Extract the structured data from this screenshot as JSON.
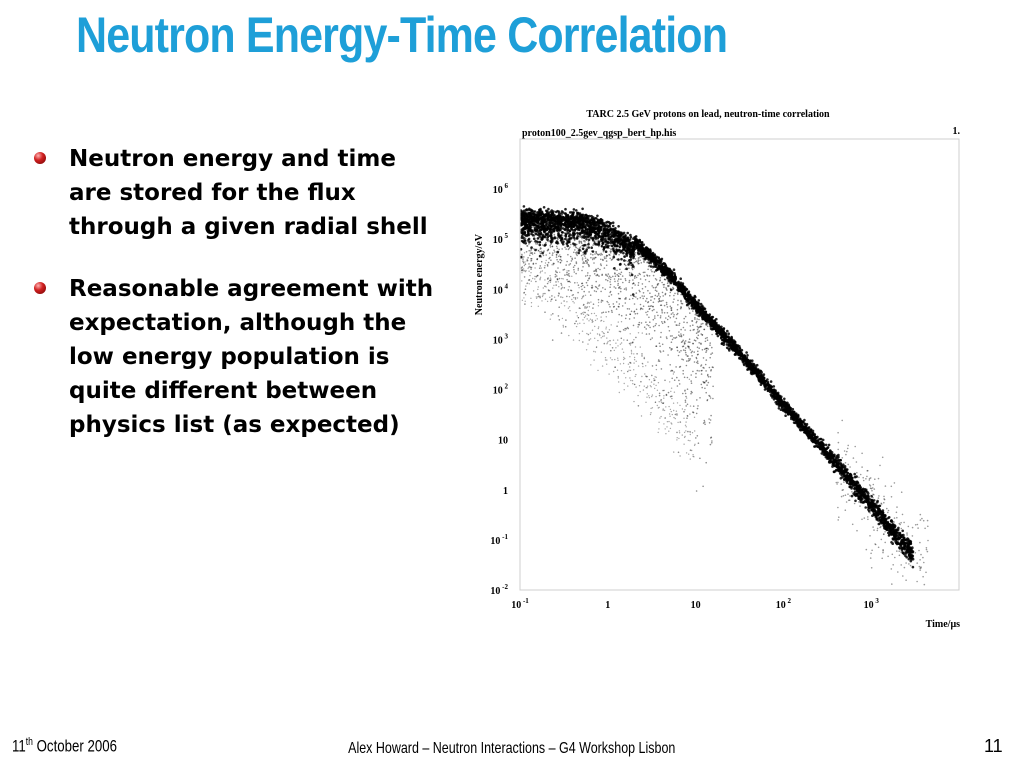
{
  "slide": {
    "title": "Neutron Energy-Time Correlation",
    "title_color": "#1e9fd8",
    "bullet_color": "#c62020",
    "bullets": [
      "Neutron energy and time are stored for the flux through a given radial shell",
      "Reasonable agreement with expectation, although the low energy population is quite different between physics list (as expected)"
    ]
  },
  "footer": {
    "date_day": "11",
    "date_suffix": "th",
    "date_rest": " October 2006",
    "center": "Alex Howard – Neutron Interactions – G4 Workshop Lisbon",
    "page": "11"
  },
  "chart_data": {
    "type": "scatter",
    "title": "TARC 2.5 GeV protons on lead, neutron-time correlation",
    "subtitle": "proton100_2.5gev_qgsp_bert_hp.his",
    "corner_label": "1.",
    "xlabel": "Time/μs",
    "ylabel": "Neutron energy/eV",
    "xscale": "log",
    "yscale": "log",
    "xlim": [
      0.1,
      10000
    ],
    "ylim": [
      0.01,
      10000000
    ],
    "x_ticks": [
      {
        "value": 0.1,
        "base": "10",
        "exp": "-1"
      },
      {
        "value": 1,
        "base": "1",
        "exp": ""
      },
      {
        "value": 10,
        "base": "10",
        "exp": ""
      },
      {
        "value": 100,
        "base": "10",
        "exp": "2"
      },
      {
        "value": 1000,
        "base": "10",
        "exp": "3"
      }
    ],
    "y_ticks": [
      {
        "value": 0.01,
        "base": "10",
        "exp": "-2"
      },
      {
        "value": 0.1,
        "base": "10",
        "exp": "-1"
      },
      {
        "value": 1,
        "base": "1",
        "exp": ""
      },
      {
        "value": 10,
        "base": "10",
        "exp": ""
      },
      {
        "value": 100,
        "base": "10",
        "exp": "2"
      },
      {
        "value": 1000,
        "base": "10",
        "exp": "3"
      },
      {
        "value": 10000,
        "base": "10",
        "exp": "4"
      },
      {
        "value": 100000,
        "base": "10",
        "exp": "5"
      },
      {
        "value": 1000000,
        "base": "10",
        "exp": "6"
      }
    ],
    "grid": false,
    "legend": "none",
    "point_color": "#000000",
    "bands": [
      {
        "name": "main-band",
        "x": [
          0.1,
          0.5,
          1,
          2,
          5,
          10,
          30,
          100,
          300,
          1000,
          3000
        ],
        "y": [
          350000,
          300000,
          200000,
          90000,
          20000,
          5000,
          600,
          50,
          6,
          0.5,
          0.05
        ]
      },
      {
        "name": "low-energy-tail",
        "x": [
          0.1,
          0.3,
          1,
          3,
          10
        ],
        "y": [
          30000,
          8000,
          800,
          100,
          10
        ]
      }
    ]
  }
}
